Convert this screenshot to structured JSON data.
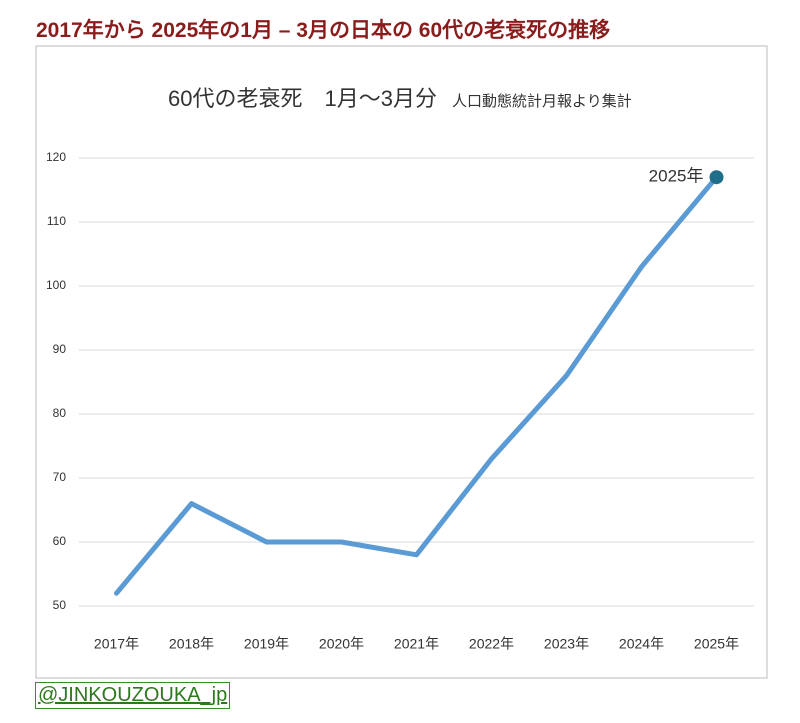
{
  "header": {
    "title": "2017年から 2025年の1月 – 3月の日本の 60代の老衰死の推移"
  },
  "chart_data": {
    "type": "line",
    "title": "60代の老衰死　1月～3月分",
    "subtitle": "人口動態統計月報より集計",
    "annotation": "2025年",
    "categories": [
      "2017年",
      "2018年",
      "2019年",
      "2020年",
      "2021年",
      "2022年",
      "2023年",
      "2024年",
      "2025年"
    ],
    "series": [
      {
        "name": "60代の老衰死",
        "color": "#5b9bd5",
        "values": [
          52,
          66,
          60,
          60,
          58,
          73,
          86,
          103,
          117
        ]
      }
    ],
    "highlight_color": "#1f6f8b",
    "ylim": [
      50,
      120
    ],
    "yticks": [
      50,
      60,
      70,
      80,
      90,
      100,
      110,
      120
    ],
    "grid": true
  },
  "footer": {
    "credit": "@JINKOUZOUKA_jp"
  }
}
